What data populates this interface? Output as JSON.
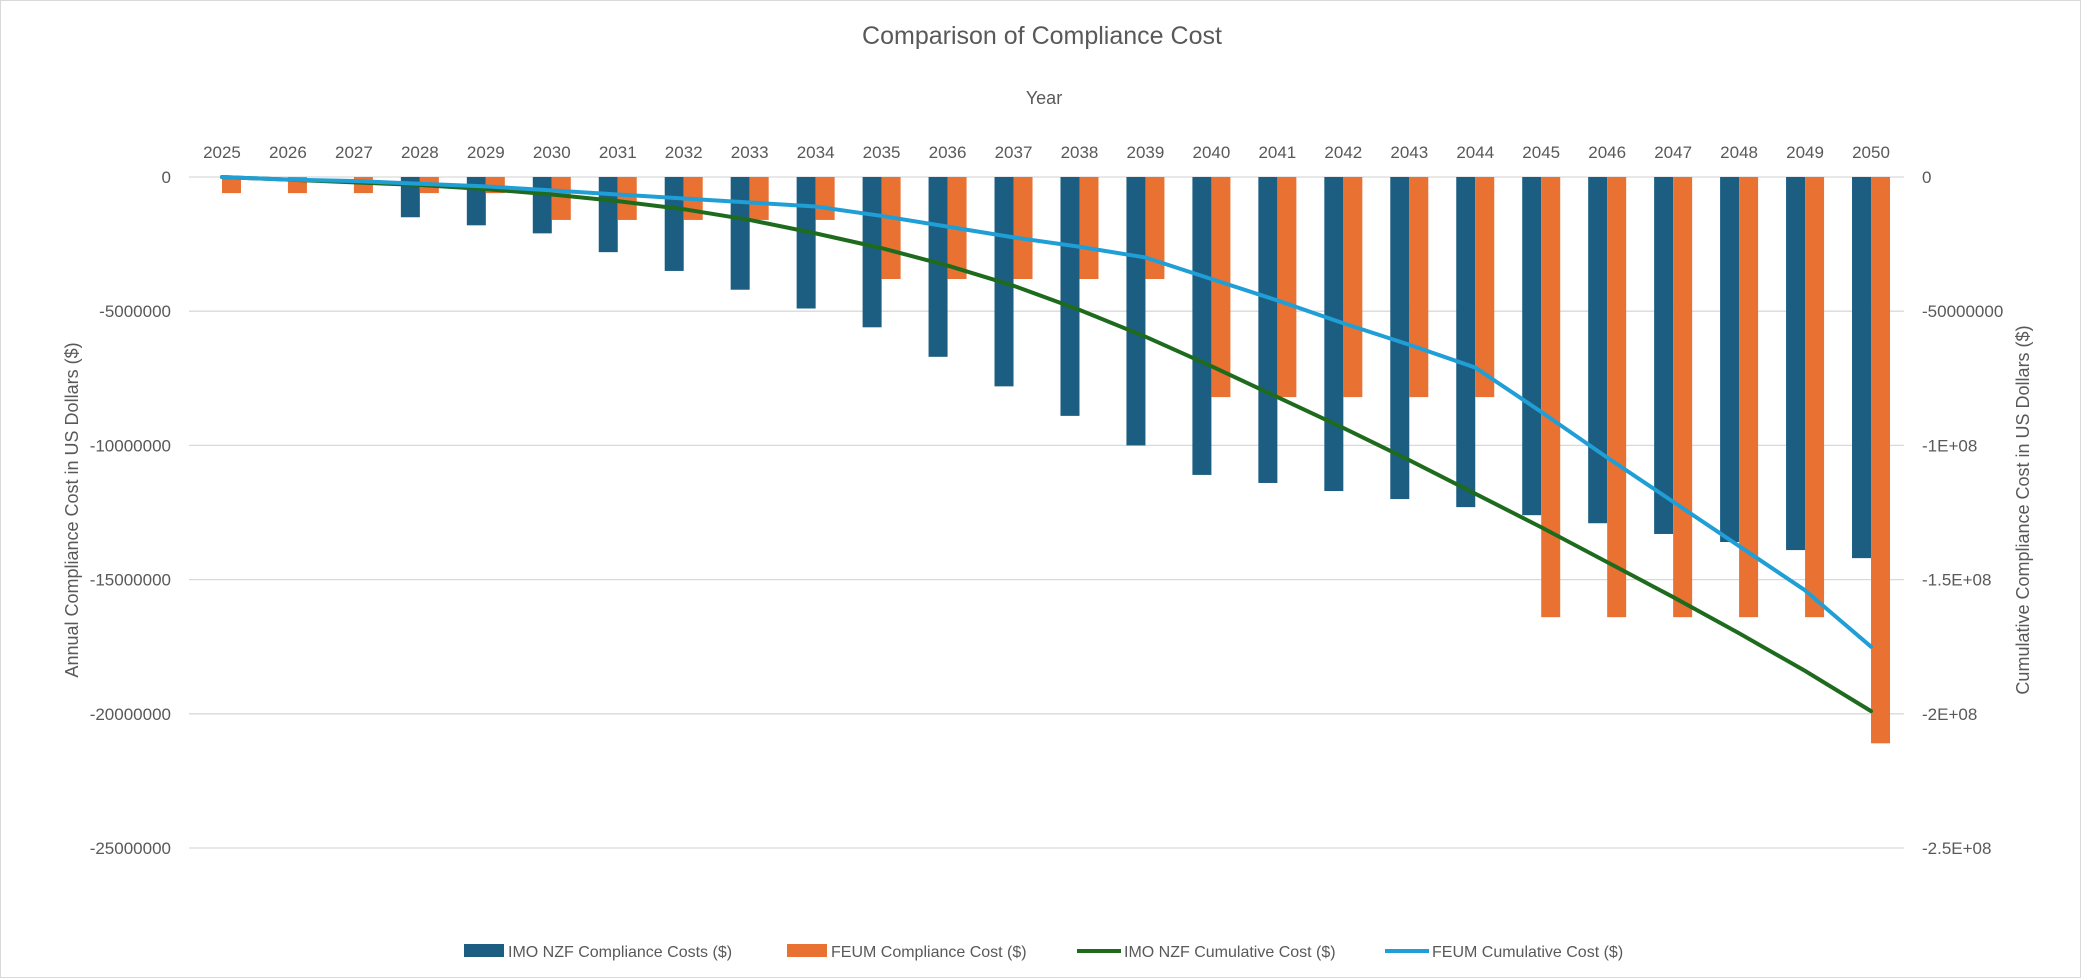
{
  "chart_data": {
    "type": "bar",
    "title": "Comparison of Compliance Cost",
    "xlabel": "Year",
    "ylabel": "Annual Compliance Cost in US Dollars ($)",
    "y2label": "Cumulative Compliance Cost in US Dollars ($)",
    "categories": [
      "2025",
      "2026",
      "2027",
      "2028",
      "2029",
      "2030",
      "2031",
      "2032",
      "2033",
      "2034",
      "2035",
      "2036",
      "2037",
      "2038",
      "2039",
      "2040",
      "2041",
      "2042",
      "2043",
      "2044",
      "2045",
      "2046",
      "2047",
      "2048",
      "2049",
      "2050"
    ],
    "ylim": [
      -25000000,
      0
    ],
    "y2lim": [
      -250000000,
      0
    ],
    "y_ticks": [
      0,
      -5000000,
      -10000000,
      -15000000,
      -20000000,
      -25000000
    ],
    "y_tick_labels": [
      "0",
      "-5000000",
      "-10000000",
      "-15000000",
      "-20000000",
      "-25000000"
    ],
    "y2_ticks": [
      0,
      -50000000,
      -100000000,
      -150000000,
      -200000000,
      -250000000
    ],
    "y2_tick_labels": [
      "0",
      "-50000000",
      "-1E+08",
      "-1.5E+08",
      "-2E+08",
      "-2.5E+08"
    ],
    "grid": true,
    "legend_position": "bottom",
    "series": [
      {
        "name": "IMO NZF Compliance Costs ($)",
        "type": "bar",
        "axis": "primary",
        "color": "#1b5e82",
        "values": [
          0,
          0,
          0,
          -1500000,
          -1800000,
          -2100000,
          -2800000,
          -3500000,
          -4200000,
          -4900000,
          -5600000,
          -6700000,
          -7800000,
          -8900000,
          -10000000,
          -11100000,
          -11400000,
          -11700000,
          -12000000,
          -12300000,
          -12600000,
          -12900000,
          -13300000,
          -13600000,
          -13900000,
          -14200000
        ]
      },
      {
        "name": "FEUM Compliance Cost ($)",
        "type": "bar",
        "axis": "primary",
        "color": "#e97132",
        "values": [
          -600000,
          -600000,
          -600000,
          -600000,
          -600000,
          -1600000,
          -1600000,
          -1600000,
          -1600000,
          -1600000,
          -3800000,
          -3800000,
          -3800000,
          -3800000,
          -3800000,
          -8200000,
          -8200000,
          -8200000,
          -8200000,
          -8200000,
          -16400000,
          -16400000,
          -16400000,
          -16400000,
          -16400000,
          -21100000
        ]
      },
      {
        "name": "IMO NZF Cumulative Cost ($)",
        "type": "line",
        "axis": "secondary",
        "color": "#1e6b1e",
        "values": [
          0,
          -1000000,
          -2000000,
          -3000000,
          -4500000,
          -6500000,
          -9000000,
          -12000000,
          -16000000,
          -21000000,
          -26500000,
          -33000000,
          -40500000,
          -49500000,
          -59500000,
          -70500000,
          -82000000,
          -93500000,
          -105500000,
          -118000000,
          -130500000,
          -143500000,
          -156500000,
          -170000000,
          -184000000,
          -199000000
        ]
      },
      {
        "name": "FEUM Cumulative Cost ($)",
        "type": "line",
        "axis": "secondary",
        "color": "#1f9fd6",
        "values": [
          0,
          -1000000,
          -1500000,
          -2500000,
          -3500000,
          -5000000,
          -6500000,
          -8000000,
          -9500000,
          -11000000,
          -14500000,
          -18500000,
          -22500000,
          -26000000,
          -30000000,
          -38000000,
          -46000000,
          -54500000,
          -62500000,
          -71000000,
          -87500000,
          -104500000,
          -121000000,
          -137500000,
          -154000000,
          -175000000
        ]
      }
    ]
  }
}
